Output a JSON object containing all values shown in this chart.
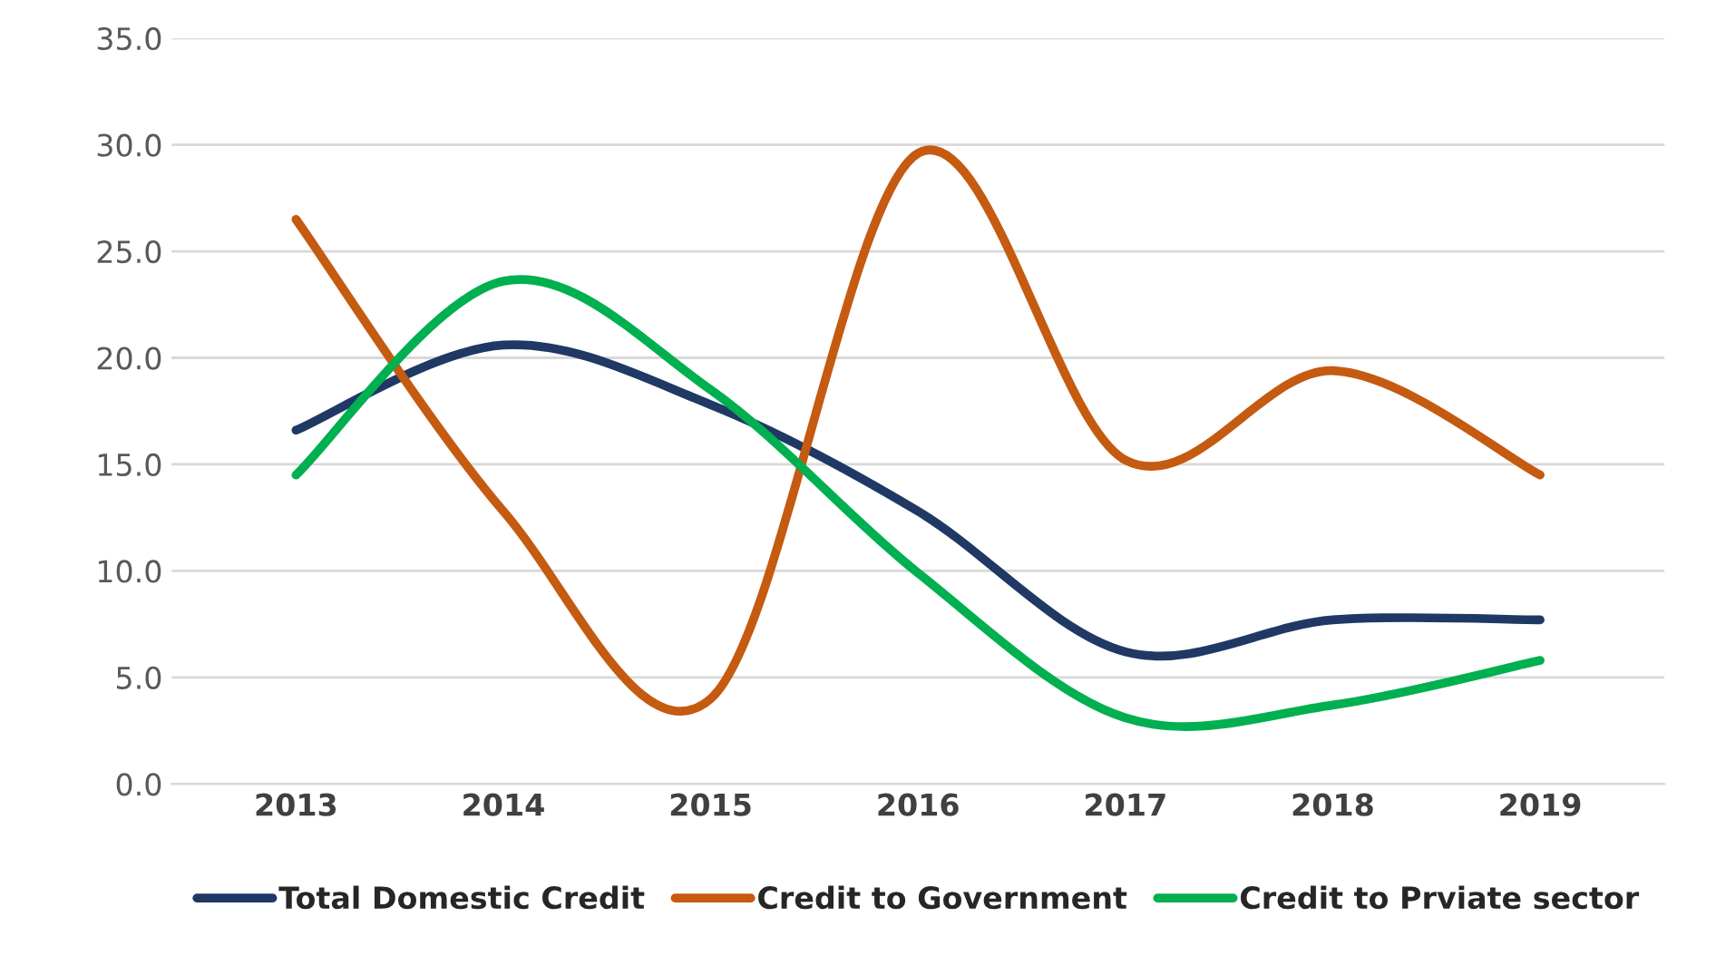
{
  "chart_data": {
    "type": "line",
    "categories": [
      "2013",
      "2014",
      "2015",
      "2016",
      "2017",
      "2018",
      "2019"
    ],
    "series": [
      {
        "name": "Total Domestic Credit",
        "color": "#203864",
        "values": [
          16.6,
          20.6,
          17.8,
          12.8,
          6.2,
          7.7,
          7.7
        ]
      },
      {
        "name": "Credit to Government",
        "color": "#c55a11",
        "values": [
          26.5,
          12.8,
          4.0,
          29.6,
          15.2,
          19.4,
          14.5
        ]
      },
      {
        "name": "Credit to Prviate sector",
        "color": "#00b050",
        "values": [
          14.5,
          23.6,
          18.5,
          9.9,
          3.1,
          3.7,
          5.8
        ]
      }
    ],
    "ylim": [
      0,
      35
    ],
    "yticks": [
      {
        "value": 0,
        "label": "0.0"
      },
      {
        "value": 5,
        "label": "5.0"
      },
      {
        "value": 10,
        "label": "10.0"
      },
      {
        "value": 15,
        "label": "15.0"
      },
      {
        "value": 20,
        "label": "20.0"
      },
      {
        "value": 25,
        "label": "25.0"
      },
      {
        "value": 30,
        "label": "30.0"
      },
      {
        "value": 35,
        "label": "35.0"
      }
    ],
    "grid": "y",
    "legend": "bottom",
    "marker": "none",
    "line_style": "solid"
  }
}
